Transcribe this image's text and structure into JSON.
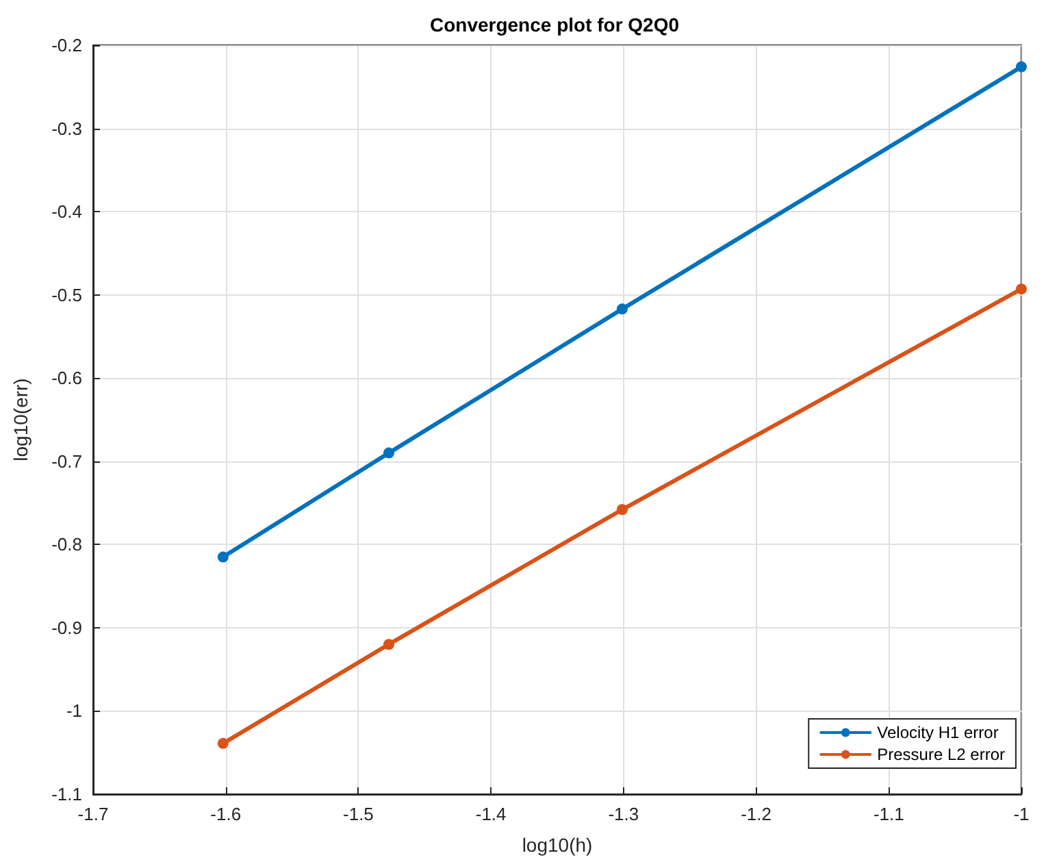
{
  "chart_data": {
    "type": "line",
    "title": "Convergence plot for Q2Q0",
    "xlabel": "log10(h)",
    "ylabel": "log10(err)",
    "x": [
      -1.602,
      -1.477,
      -1.301,
      -1.0
    ],
    "series": [
      {
        "name": "Velocity H1 error",
        "color": "#0072bd",
        "values": [
          -0.815,
          -0.69,
          -0.517,
          -0.226
        ]
      },
      {
        "name": "Pressure L2 error",
        "color": "#d95319",
        "values": [
          -1.039,
          -0.92,
          -0.758,
          -0.493
        ]
      }
    ],
    "xlim": [
      -1.7,
      -1.0
    ],
    "xticks": [
      -1.7,
      -1.6,
      -1.5,
      -1.4,
      -1.3,
      -1.2,
      -1.1,
      -1
    ],
    "ylim": [
      -1.1,
      -0.2
    ],
    "yticks": [
      -1.1,
      -1,
      -0.9,
      -0.8,
      -0.7,
      -0.6,
      -0.5,
      -0.4,
      -0.3,
      -0.2
    ],
    "grid": true,
    "legend": "bottom right",
    "marker": "circle",
    "line_style": "solid"
  }
}
